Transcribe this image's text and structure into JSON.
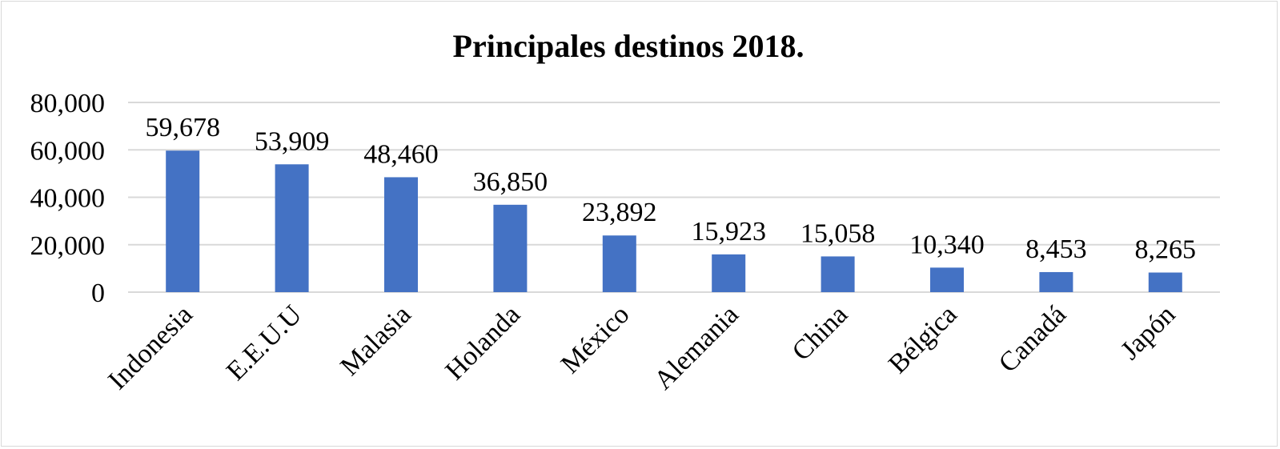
{
  "chart_data": {
    "type": "bar",
    "title": "Principales destinos 2018.",
    "xlabel": "",
    "ylabel": "",
    "categories": [
      "Indonesia",
      "E.E.U.U",
      "Malasia",
      "Holanda",
      "México",
      "Alemania",
      "China",
      "Bélgica",
      "Canadá",
      "Japón"
    ],
    "values": [
      59678,
      53909,
      48460,
      36850,
      23892,
      15923,
      15058,
      10340,
      8453,
      8265
    ],
    "value_labels": [
      "59,678",
      "53,909",
      "48,460",
      "36,850",
      "23,892",
      "15,923",
      "15,058",
      "10,340",
      "8,453",
      "8,265"
    ],
    "ylim": [
      0,
      80000
    ],
    "y_ticks": [
      0,
      20000,
      40000,
      60000,
      80000
    ],
    "y_tick_labels": [
      "0",
      "20,000",
      "40,000",
      "60,000",
      "80,000"
    ],
    "grid": true,
    "legend": "none",
    "bar_color": "#4472C4",
    "grid_color": "#D9D9D9"
  }
}
